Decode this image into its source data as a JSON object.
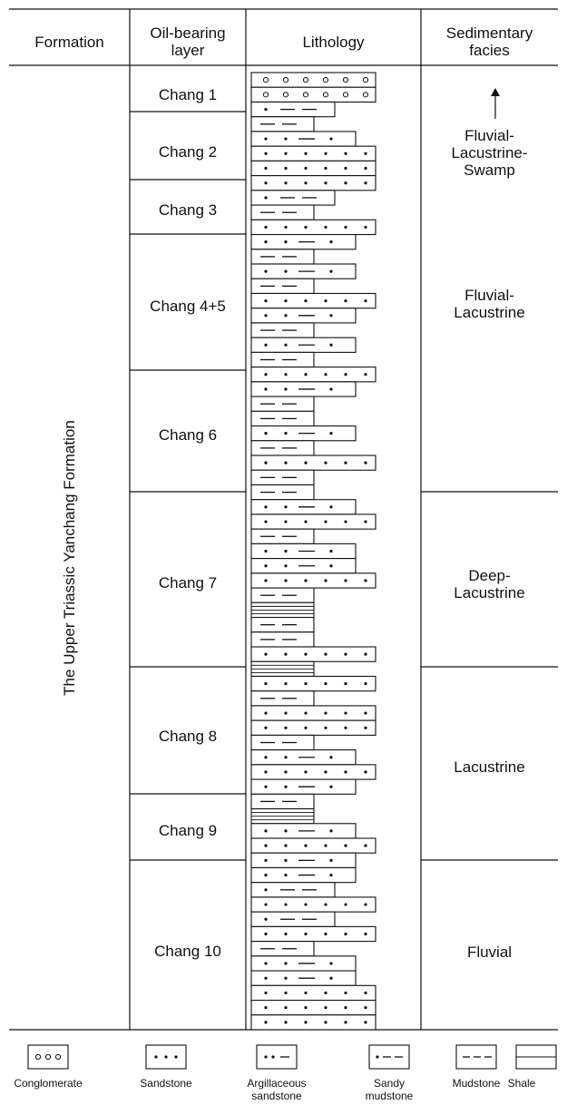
{
  "headers": {
    "formation": "Formation",
    "oil_layer": "Oil-bearing\nlayer",
    "lithology": "Lithology",
    "facies": "Sedimentary\nfacies"
  },
  "formation_name": "The Upper Triassic Yanchang Formation",
  "layers": [
    "Chang 1",
    "Chang 2",
    "Chang 3",
    "Chang 4+5",
    "Chang 6",
    "Chang 7",
    "Chang 8",
    "Chang 9",
    "Chang 10"
  ],
  "facies": [
    "Fluvial-\nLacustrine-\nSwamp",
    "Fluvial-\nLacustrine",
    "Deep-\nLacustrine",
    "Lacustrine",
    "Fluvial"
  ],
  "legend": [
    {
      "name": "Conglomerate",
      "label": "Conglomerate"
    },
    {
      "name": "Sandstone",
      "label": "Sandstone"
    },
    {
      "name": "Argillaceous sandstone",
      "label": "Argillaceous\nsandstone"
    },
    {
      "name": "Sandy mudstone",
      "label": "Sandy\nmudstone"
    },
    {
      "name": "Mudstone",
      "label": "Mudstone"
    },
    {
      "name": "Shale",
      "label": "Shale"
    }
  ],
  "lithology_column": [
    {
      "rock": "conglomerate"
    },
    {
      "rock": "conglomerate"
    },
    {
      "rock": "sandy mudstone"
    },
    {
      "rock": "mudstone"
    },
    {
      "rock": "argillaceous sandstone"
    },
    {
      "rock": "sandstone"
    },
    {
      "rock": "sandstone"
    },
    {
      "rock": "sandstone"
    },
    {
      "rock": "sandy mudstone"
    },
    {
      "rock": "mudstone"
    },
    {
      "rock": "sandstone"
    },
    {
      "rock": "argillaceous sandstone"
    },
    {
      "rock": "mudstone"
    },
    {
      "rock": "argillaceous sandstone"
    },
    {
      "rock": "mudstone"
    },
    {
      "rock": "sandstone"
    },
    {
      "rock": "argillaceous sandstone"
    },
    {
      "rock": "mudstone"
    },
    {
      "rock": "argillaceous sandstone"
    },
    {
      "rock": "mudstone"
    },
    {
      "rock": "sandstone"
    },
    {
      "rock": "argillaceous sandstone"
    },
    {
      "rock": "mudstone"
    },
    {
      "rock": "mudstone"
    },
    {
      "rock": "argillaceous sandstone"
    },
    {
      "rock": "mudstone"
    },
    {
      "rock": "sandstone"
    },
    {
      "rock": "mudstone"
    },
    {
      "rock": "mudstone"
    },
    {
      "rock": "argillaceous sandstone"
    },
    {
      "rock": "sandstone"
    },
    {
      "rock": "mudstone"
    },
    {
      "rock": "argillaceous sandstone"
    },
    {
      "rock": "argillaceous sandstone"
    },
    {
      "rock": "sandstone"
    },
    {
      "rock": "mudstone"
    },
    {
      "rock": "shale"
    },
    {
      "rock": "mudstone"
    },
    {
      "rock": "mudstone"
    },
    {
      "rock": "sandstone"
    },
    {
      "rock": "shale"
    },
    {
      "rock": "sandstone"
    },
    {
      "rock": "mudstone"
    },
    {
      "rock": "sandstone"
    },
    {
      "rock": "sandstone"
    },
    {
      "rock": "mudstone"
    },
    {
      "rock": "argillaceous sandstone"
    },
    {
      "rock": "sandstone"
    },
    {
      "rock": "argillaceous sandstone"
    },
    {
      "rock": "mudstone"
    },
    {
      "rock": "shale"
    },
    {
      "rock": "argillaceous sandstone"
    },
    {
      "rock": "sandstone"
    },
    {
      "rock": "argillaceous sandstone"
    },
    {
      "rock": "argillaceous sandstone"
    },
    {
      "rock": "sandy mudstone"
    },
    {
      "rock": "sandstone"
    },
    {
      "rock": "sandy mudstone"
    },
    {
      "rock": "sandstone"
    },
    {
      "rock": "mudstone"
    },
    {
      "rock": "argillaceous sandstone"
    },
    {
      "rock": "argillaceous sandstone"
    },
    {
      "rock": "sandstone"
    },
    {
      "rock": "sandstone"
    },
    {
      "rock": "sandstone"
    }
  ]
}
